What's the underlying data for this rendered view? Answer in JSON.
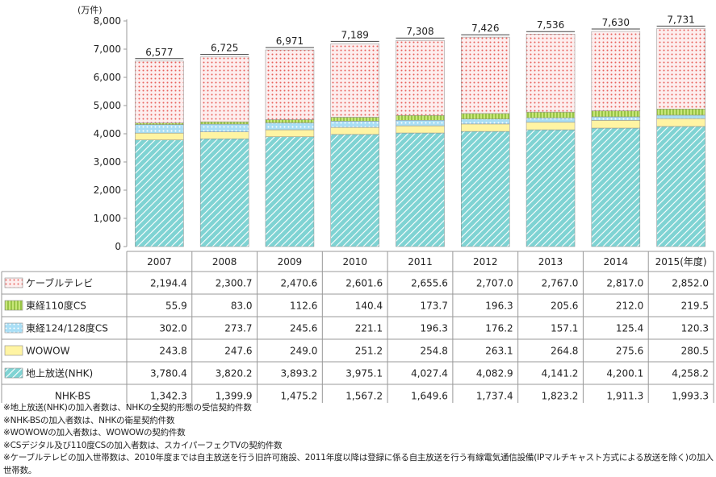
{
  "colors": {
    "ground_fill": "#7fd3d3",
    "ground_stripe": "#ffffff",
    "wowow_fill": "#fff4a3",
    "bs_fill": "#a9def5",
    "bs_dot": "#ffffff",
    "cs110_fill": "#c8e67a",
    "cs110_line": "#7fb22a",
    "cable_fill": "#fdeeee",
    "cable_dot": "#e8625c",
    "axis": "#999999",
    "grid": "#cccccc"
  },
  "chart_data": {
    "type": "bar",
    "stacked": true,
    "unit_label": "(万件)",
    "year_suffix": "(年度)",
    "ylim": [
      0,
      8000
    ],
    "yticks": [
      "0",
      "1,000",
      "2,000",
      "3,000",
      "4,000",
      "5,000",
      "6,000",
      "7,000",
      "8,000"
    ],
    "categories": [
      "2007",
      "2008",
      "2009",
      "2010",
      "2011",
      "2012",
      "2013",
      "2014",
      "2015"
    ],
    "totals": [
      6577,
      6725,
      6971,
      7189,
      7308,
      7426,
      7536,
      7630,
      7731
    ],
    "total_labels": [
      "6,577",
      "6,725",
      "6,971",
      "7,189",
      "7,308",
      "7,426",
      "7,536",
      "7,630",
      "7,731"
    ],
    "series": [
      {
        "name": "地上放送(NHK)",
        "icon": "ground-icon",
        "values": [
          3780.4,
          3820.2,
          3893.2,
          3975.1,
          4027.4,
          4082.9,
          4141.2,
          4200.1,
          4258.2
        ],
        "labels": [
          "3,780.4",
          "3,820.2",
          "3,893.2",
          "3,975.1",
          "4,027.4",
          "4,082.9",
          "4,141.2",
          "4,200.1",
          "4,258.2"
        ]
      },
      {
        "name": "WOWOW",
        "icon": "wowow-icon",
        "values": [
          243.8,
          247.6,
          249.0,
          251.2,
          254.8,
          263.1,
          264.8,
          275.6,
          280.5
        ],
        "labels": [
          "243.8",
          "247.6",
          "249.0",
          "251.2",
          "254.8",
          "263.1",
          "264.8",
          "275.6",
          "280.5"
        ]
      },
      {
        "name": "東経124/128度CS",
        "icon": "cs124-icon",
        "values": [
          302.0,
          273.7,
          245.6,
          221.1,
          196.3,
          176.2,
          157.1,
          125.4,
          120.3
        ],
        "labels": [
          "302.0",
          "273.7",
          "245.6",
          "221.1",
          "196.3",
          "176.2",
          "157.1",
          "125.4",
          "120.3"
        ]
      },
      {
        "name": "東経110度CS",
        "icon": "cs110-icon",
        "values": [
          55.9,
          83.0,
          112.6,
          140.4,
          173.7,
          196.3,
          205.6,
          212.0,
          219.5
        ],
        "labels": [
          "55.9",
          "83.0",
          "112.6",
          "140.4",
          "173.7",
          "196.3",
          "205.6",
          "212.0",
          "219.5"
        ]
      },
      {
        "name": "ケーブルテレビ",
        "icon": "cable-icon",
        "values": [
          2194.4,
          2300.7,
          2470.6,
          2601.6,
          2655.6,
          2707.0,
          2767.0,
          2817.0,
          2852.0
        ],
        "labels": [
          "2,194.4",
          "2,300.7",
          "2,470.6",
          "2,601.6",
          "2,655.6",
          "2,707.0",
          "2,767.0",
          "2,817.0",
          "2,852.0"
        ]
      }
    ],
    "extra_row": {
      "name": "NHK-BS",
      "values": [
        1342.3,
        1399.9,
        1475.2,
        1567.2,
        1649.6,
        1737.4,
        1823.2,
        1911.3,
        1993.3
      ],
      "labels": [
        "1,342.3",
        "1,399.9",
        "1,475.2",
        "1,567.2",
        "1,649.6",
        "1,737.4",
        "1,823.2",
        "1,911.3",
        "1,993.3"
      ]
    },
    "table_row_order": [
      "ケーブルテレビ",
      "東経110度CS",
      "東経124/128度CS",
      "WOWOW",
      "地上放送(NHK)",
      "NHK-BS"
    ]
  },
  "footnotes": [
    "※地上放送(NHK)の加入者数は、NHKの全契約形態の受信契約件数",
    "※NHK-BSの加入者数は、NHKの衛星契約件数",
    "※WOWOWの加入者数は、WOWOWの契約件数",
    "※CSデジタル及び110度CSの加入者数は、スカイパーフェクTVの契約件数",
    "※ケーブルテレビの加入世帯数は、2010年度までは自主放送を行う旧許可施設、2011年度以降は登録に係る自主放送を行う有線電気通信設備(IPマルチキャスト方式による放送を除く)の加入世帯数。"
  ]
}
